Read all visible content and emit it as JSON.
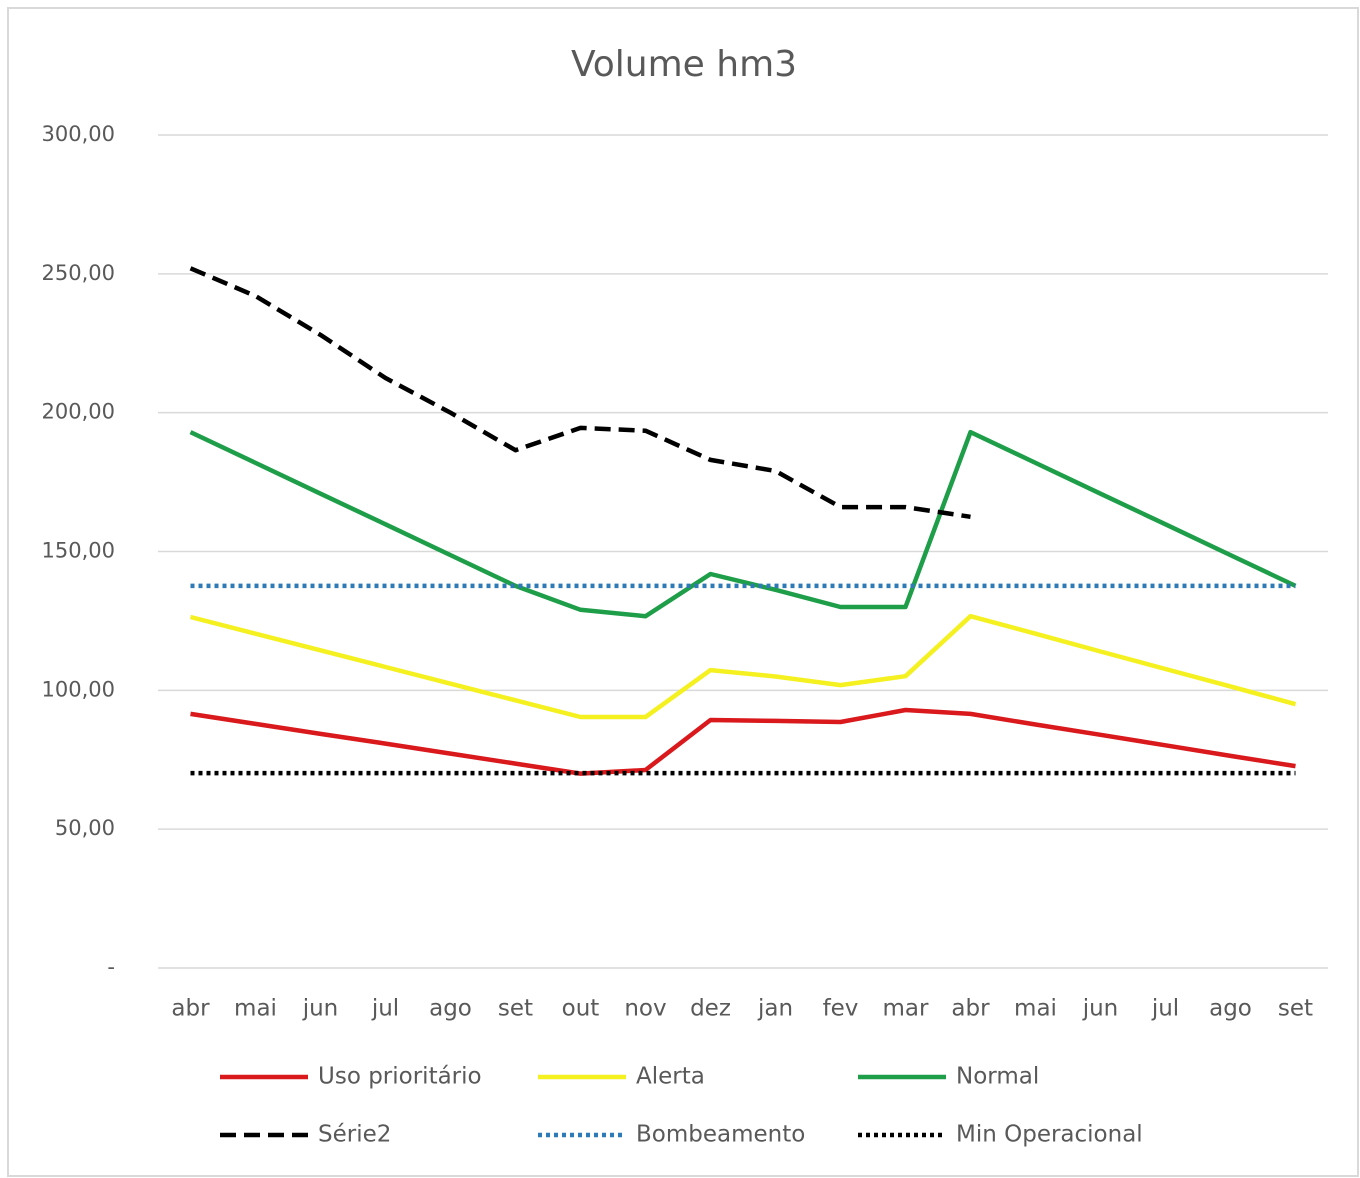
{
  "chart_data": {
    "type": "line",
    "title": "Volume hm3",
    "categories": [
      "abr",
      "mai",
      "jun",
      "jul",
      "ago",
      "set",
      "out",
      "nov",
      "dez",
      "jan",
      "fev",
      "mar",
      "abr",
      "mai",
      "jun",
      "jul",
      "ago",
      "set"
    ],
    "ylim": [
      0,
      300
    ],
    "yticks": [
      {
        "value": 0,
        "label": "-"
      },
      {
        "value": 50,
        "label": "50,00"
      },
      {
        "value": 100,
        "label": "100,00"
      },
      {
        "value": 150,
        "label": "150,00"
      },
      {
        "value": 200,
        "label": "200,00"
      },
      {
        "value": 250,
        "label": "250,00"
      },
      {
        "value": 300,
        "label": "300,00"
      }
    ],
    "grid": true,
    "legend": "bottom",
    "series": [
      {
        "name": "Uso prioritário",
        "color": "#d9191c",
        "dash": "solid",
        "values": [
          91.5,
          87.9,
          84.3,
          80.8,
          77.2,
          73.6,
          70,
          71.3,
          89.3,
          89,
          88.6,
          92.9,
          91.5,
          87.7,
          84,
          80.2,
          76.4,
          72.7
        ]
      },
      {
        "name": "Alerta",
        "color": "#f5f020",
        "dash": "solid",
        "values": [
          126.4,
          120.4,
          114.4,
          108.4,
          102.4,
          96.4,
          90.4,
          90.4,
          107.3,
          105,
          101.9,
          105.1,
          126.7,
          120.4,
          114,
          107.7,
          101.4,
          95
        ]
      },
      {
        "name": "Normal",
        "color": "#1f9e4a",
        "dash": "solid",
        "values": [
          193,
          181.9,
          170.8,
          159.8,
          148.7,
          137.6,
          129,
          126.7,
          141.9,
          136.2,
          130,
          130,
          193,
          181.9,
          170.8,
          159.8,
          148.7,
          137.6
        ]
      },
      {
        "name": "Série2",
        "color": "#000000",
        "dash": "dashed",
        "values": [
          252,
          242,
          228,
          212.5,
          200,
          186.5,
          194.5,
          193.5,
          183,
          179,
          166,
          166,
          162.5,
          null,
          null,
          null,
          null,
          null
        ]
      },
      {
        "name": "Bombeamento",
        "color": "#2e7ab6",
        "dash": "dotted",
        "values": [
          137.6,
          137.6,
          137.6,
          137.6,
          137.6,
          137.6,
          137.6,
          137.6,
          137.6,
          137.6,
          137.6,
          137.6,
          137.6,
          137.6,
          137.6,
          137.6,
          137.6,
          137.6
        ]
      },
      {
        "name": "Min Operacional",
        "color": "#000000",
        "dash": "dotted",
        "values": [
          70.2,
          70.2,
          70.2,
          70.2,
          70.2,
          70.2,
          70.2,
          70.2,
          70.2,
          70.2,
          70.2,
          70.2,
          70.2,
          70.2,
          70.2,
          70.2,
          70.2,
          70.2
        ]
      }
    ]
  }
}
